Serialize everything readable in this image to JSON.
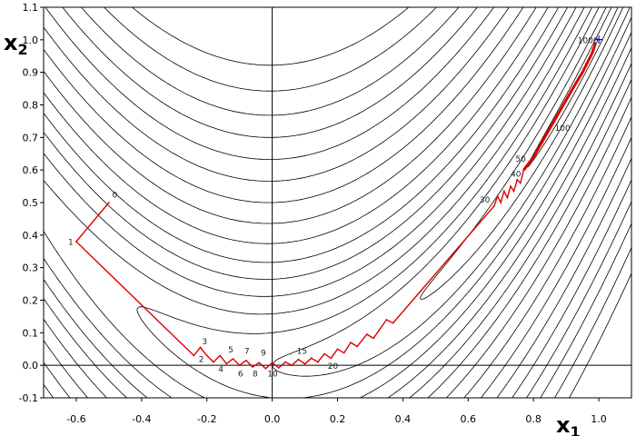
{
  "chart_data": {
    "type": "line",
    "xlabel": "x",
    "xlabel_sub": "1",
    "ylabel": "x",
    "ylabel_sub": "2",
    "xlim": [
      -0.7,
      1.1
    ],
    "ylim": [
      -0.1,
      1.1
    ],
    "xticks": [
      -0.6,
      -0.4,
      -0.2,
      0.0,
      0.2,
      0.4,
      0.6,
      0.8,
      1.0
    ],
    "xtick_labels": [
      "-0.6",
      "-0.4",
      "-0.2",
      "0.0",
      "0.2",
      "0.4",
      "0.6",
      "0.8",
      "1.0"
    ],
    "yticks": [
      -0.1,
      0.0,
      0.1,
      0.2,
      0.3,
      0.4,
      0.5,
      0.6,
      0.7,
      0.8,
      0.9,
      1.0,
      1.1
    ],
    "ytick_labels": [
      "-0.1",
      "0.0",
      "0.1",
      "0.2",
      "0.3",
      "0.4",
      "0.5",
      "0.6",
      "0.7",
      "0.8",
      "0.9",
      "1.0",
      "1.1"
    ],
    "contour_levels": [
      0.05,
      0.3,
      1,
      2,
      3.5,
      5.5,
      8,
      11,
      15,
      20,
      26,
      33,
      41,
      50,
      60,
      72,
      86
    ],
    "contour_color": "#000000",
    "path_color": "#dd0000",
    "optimum_marker": "+",
    "optimum_color": "#0000cc",
    "optimum": [
      1.0,
      1.0
    ],
    "path": [
      [
        -0.5,
        0.5
      ],
      [
        -0.6,
        0.38
      ],
      [
        -0.24,
        0.03
      ],
      [
        -0.22,
        0.055
      ],
      [
        -0.2,
        0.03
      ],
      [
        -0.18,
        0.01
      ],
      [
        -0.16,
        0.03
      ],
      [
        -0.14,
        0.005
      ],
      [
        -0.12,
        0.02
      ],
      [
        -0.1,
        0.0
      ],
      [
        -0.08,
        0.015
      ],
      [
        -0.06,
        -0.005
      ],
      [
        -0.04,
        0.008
      ],
      [
        -0.02,
        -0.01
      ],
      [
        0.0,
        0.008
      ],
      [
        0.02,
        -0.008
      ],
      [
        0.04,
        0.01
      ],
      [
        0.06,
        0.0
      ],
      [
        0.08,
        0.018
      ],
      [
        0.1,
        0.004
      ],
      [
        0.12,
        0.022
      ],
      [
        0.14,
        0.01
      ],
      [
        0.16,
        0.035
      ],
      [
        0.18,
        0.022
      ],
      [
        0.2,
        0.05
      ],
      [
        0.22,
        0.038
      ],
      [
        0.24,
        0.07
      ],
      [
        0.26,
        0.058
      ],
      [
        0.29,
        0.095
      ],
      [
        0.31,
        0.083
      ],
      [
        0.35,
        0.14
      ],
      [
        0.37,
        0.13
      ],
      [
        0.68,
        0.49
      ],
      [
        0.69,
        0.52
      ],
      [
        0.7,
        0.5
      ],
      [
        0.71,
        0.535
      ],
      [
        0.72,
        0.515
      ],
      [
        0.73,
        0.55
      ],
      [
        0.74,
        0.535
      ],
      [
        0.75,
        0.57
      ],
      [
        0.76,
        0.56
      ],
      [
        0.77,
        0.6
      ],
      [
        0.8,
        0.64
      ],
      [
        0.84,
        0.71
      ],
      [
        0.88,
        0.78
      ],
      [
        0.92,
        0.85
      ],
      [
        0.95,
        0.9
      ],
      [
        0.98,
        0.96
      ],
      [
        0.99,
        0.99
      ]
    ],
    "annotations": [
      {
        "text": "0",
        "x": -0.49,
        "y": 0.515
      },
      {
        "text": "1",
        "x": -0.625,
        "y": 0.37
      },
      {
        "text": "2",
        "x": -0.225,
        "y": 0.01
      },
      {
        "text": "3",
        "x": -0.215,
        "y": 0.065
      },
      {
        "text": "4",
        "x": -0.165,
        "y": -0.02
      },
      {
        "text": "5",
        "x": -0.135,
        "y": 0.04
      },
      {
        "text": "6",
        "x": -0.105,
        "y": -0.035
      },
      {
        "text": "7",
        "x": -0.085,
        "y": 0.035
      },
      {
        "text": "8",
        "x": -0.06,
        "y": -0.035
      },
      {
        "text": "9",
        "x": -0.035,
        "y": 0.03
      },
      {
        "text": "10",
        "x": -0.015,
        "y": -0.035
      },
      {
        "text": "15",
        "x": 0.075,
        "y": 0.035
      },
      {
        "text": "20",
        "x": 0.17,
        "y": -0.01
      },
      {
        "text": "30",
        "x": 0.635,
        "y": 0.5
      },
      {
        "text": "40",
        "x": 0.73,
        "y": 0.58
      },
      {
        "text": "50",
        "x": 0.745,
        "y": 0.625
      },
      {
        "text": "100",
        "x": 0.865,
        "y": 0.72
      },
      {
        "text": "1000",
        "x": 0.935,
        "y": 0.99
      }
    ]
  }
}
